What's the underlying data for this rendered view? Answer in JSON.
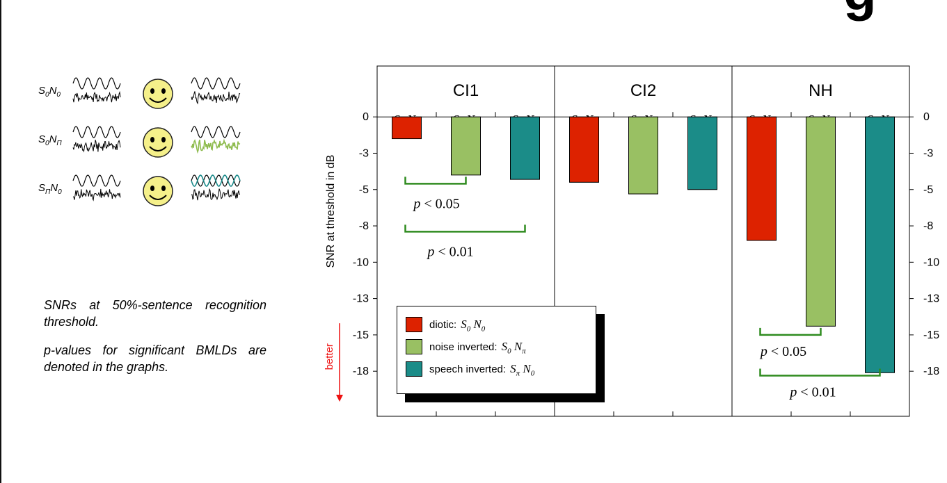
{
  "corner_glyph": "g",
  "conditions": [
    {
      "id": "s0n0",
      "label_html": "S<sub>0</sub>N<sub>0</sub>",
      "modified_color": "#000000",
      "modified_style": "noise"
    },
    {
      "id": "s0npi",
      "label_html": "S<sub>0</sub>N<sub>Π</sub>",
      "modified_color": "#8fbc4f",
      "modified_style": "noise"
    },
    {
      "id": "spin0",
      "label_html": "S<sub>Π</sub>N<sub>0</sub>",
      "modified_color": "#1a8a8a",
      "modified_style": "sine"
    }
  ],
  "notes": {
    "threshold": "SNRs at 50%-sentence recognition threshold.",
    "pvalues": "p-values for significant BMLDs are denoted in the graphs."
  },
  "colors": {
    "S0N0": "#dd2200",
    "S0Npi": "#99c063",
    "SpiN0": "#1b8c88",
    "bracket": "#2e8b1e",
    "better_arrow": "#ee1111"
  },
  "chart_data": {
    "type": "bar",
    "ylabel": "SNR at threshold in dB",
    "ylim": [
      -20.6,
      3.5
    ],
    "ytick_values": [
      0,
      -2.5,
      -5,
      -7.5,
      -10,
      -12.5,
      -15,
      -17.5
    ],
    "ytick_labels": [
      "0",
      "-3",
      "-5",
      "-8",
      "-10",
      "-13",
      "-15",
      "-18"
    ],
    "better_label": "better",
    "groups": [
      {
        "name": "CI1",
        "bars": [
          {
            "condition": "S0N0",
            "sub1": "0",
            "sub2": "0",
            "value": -1.5
          },
          {
            "condition": "S0Npi",
            "sub1": "0",
            "sub2": "π",
            "value": -4.0
          },
          {
            "condition": "SpiN0",
            "sub1": "π",
            "sub2": "0",
            "value": -4.3
          }
        ],
        "brackets": [
          {
            "from": 0,
            "to": 1,
            "p": "0.05"
          },
          {
            "from": 0,
            "to": 2,
            "p": "0.01"
          }
        ]
      },
      {
        "name": "CI2",
        "bars": [
          {
            "condition": "S0N0",
            "sub1": "0",
            "sub2": "0",
            "value": -4.5
          },
          {
            "condition": "S0Npi",
            "sub1": "0",
            "sub2": "π",
            "value": -5.3
          },
          {
            "condition": "SpiN0",
            "sub1": "π",
            "sub2": "0",
            "value": -5.0
          }
        ],
        "brackets": []
      },
      {
        "name": "NH",
        "bars": [
          {
            "condition": "S0N0",
            "sub1": "0",
            "sub2": "0",
            "value": -8.5
          },
          {
            "condition": "S0Npi",
            "sub1": "0",
            "sub2": "π",
            "value": -14.4
          },
          {
            "condition": "SpiN0",
            "sub1": "π",
            "sub2": "0",
            "value": -17.6
          }
        ],
        "brackets": [
          {
            "from": 0,
            "to": 1,
            "p": "0.05"
          },
          {
            "from": 0,
            "to": 2,
            "p": "0.01"
          }
        ]
      }
    ],
    "legend": [
      {
        "label": "diotic:",
        "cond_html": "S<sub>0</sub> N<sub>0</sub>",
        "color": "#dd2200"
      },
      {
        "label": "noise inverted:",
        "cond_html": "S<sub>0</sub> N<sub>π</sub>",
        "color": "#99c063"
      },
      {
        "label": "speech inverted:",
        "cond_html": "S<sub>π</sub> N<sub>0</sub>",
        "color": "#1b8c88"
      }
    ]
  }
}
